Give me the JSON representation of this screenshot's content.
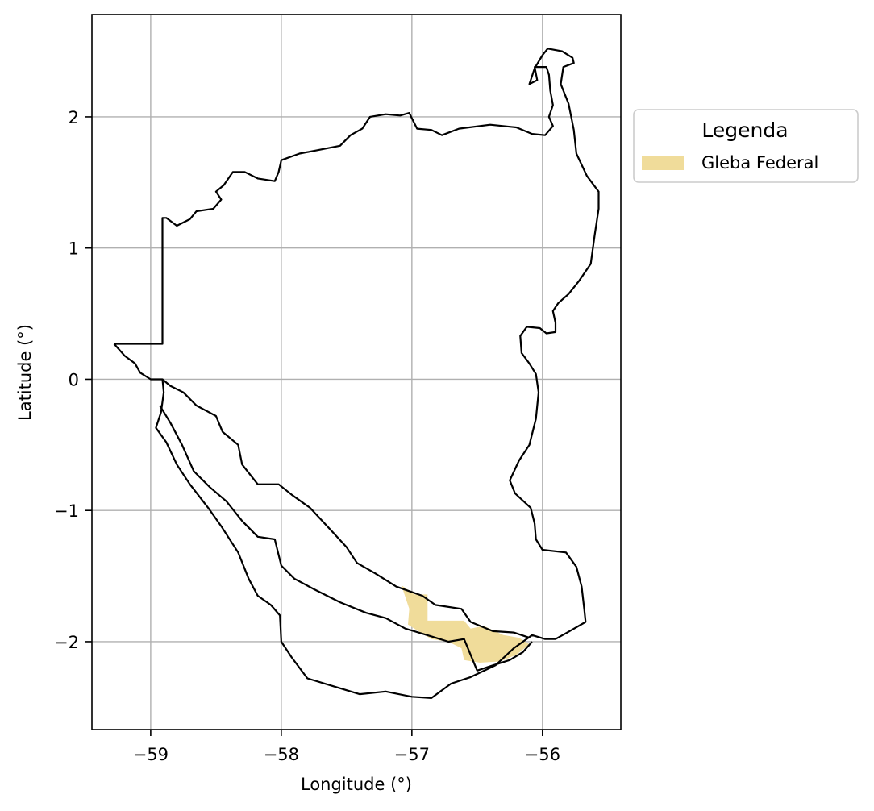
{
  "map": {
    "xlabel": "Longitude (°)",
    "ylabel": "Latitude (°)",
    "xlim": [
      -59.45,
      -55.4
    ],
    "ylim": [
      -2.67,
      2.78
    ],
    "x_ticks": [
      {
        "value": -59,
        "label": "−59"
      },
      {
        "value": -58,
        "label": "−58"
      },
      {
        "value": -57,
        "label": "−57"
      },
      {
        "value": -56,
        "label": "−56"
      }
    ],
    "y_ticks": [
      {
        "value": 2,
        "label": "2"
      },
      {
        "value": 1,
        "label": "1"
      },
      {
        "value": 0,
        "label": "0"
      },
      {
        "value": -1,
        "label": "−1"
      },
      {
        "value": -2,
        "label": "−2"
      }
    ],
    "grid": true,
    "legend": {
      "title": "Legenda",
      "placement": "outside-right",
      "entries": [
        {
          "label": "Gleba Federal",
          "color": "#f0dc9a"
        }
      ]
    },
    "colors": {
      "boundary": "#000000",
      "gleba": "#f0dc9a",
      "grid": "#b0b0b0"
    },
    "regions": {
      "outer_boundary": [
        [
          -59.28,
          0.27
        ],
        [
          -58.91,
          0.27
        ],
        [
          -58.91,
          1.23
        ],
        [
          -58.88,
          1.23
        ],
        [
          -58.8,
          1.17
        ],
        [
          -58.7,
          1.22
        ],
        [
          -58.65,
          1.28
        ],
        [
          -58.52,
          1.3
        ],
        [
          -58.46,
          1.37
        ],
        [
          -58.5,
          1.43
        ],
        [
          -58.44,
          1.48
        ],
        [
          -58.37,
          1.58
        ],
        [
          -58.28,
          1.58
        ],
        [
          -58.18,
          1.53
        ],
        [
          -58.05,
          1.51
        ],
        [
          -58.02,
          1.58
        ],
        [
          -58.0,
          1.67
        ],
        [
          -57.86,
          1.72
        ],
        [
          -57.7,
          1.75
        ],
        [
          -57.55,
          1.78
        ],
        [
          -57.47,
          1.86
        ],
        [
          -57.38,
          1.91
        ],
        [
          -57.32,
          2.0
        ],
        [
          -57.2,
          2.02
        ],
        [
          -57.09,
          2.01
        ],
        [
          -57.02,
          2.03
        ],
        [
          -56.96,
          1.91
        ],
        [
          -56.85,
          1.9
        ],
        [
          -56.77,
          1.86
        ],
        [
          -56.64,
          1.91
        ],
        [
          -56.4,
          1.94
        ],
        [
          -56.2,
          1.92
        ],
        [
          -56.08,
          1.87
        ],
        [
          -55.98,
          1.86
        ],
        [
          -55.92,
          1.93
        ],
        [
          -55.95,
          2.0
        ],
        [
          -55.92,
          2.09
        ],
        [
          -55.94,
          2.2
        ],
        [
          -55.95,
          2.32
        ],
        [
          -55.97,
          2.38
        ],
        [
          -56.06,
          2.38
        ],
        [
          -56.04,
          2.28
        ],
        [
          -56.1,
          2.25
        ],
        [
          -56.06,
          2.37
        ],
        [
          -56.0,
          2.47
        ],
        [
          -55.96,
          2.52
        ],
        [
          -55.85,
          2.5
        ],
        [
          -55.77,
          2.45
        ],
        [
          -55.76,
          2.41
        ],
        [
          -55.84,
          2.38
        ],
        [
          -55.86,
          2.25
        ],
        [
          -55.8,
          2.1
        ],
        [
          -55.76,
          1.9
        ],
        [
          -55.74,
          1.72
        ],
        [
          -55.66,
          1.55
        ],
        [
          -55.57,
          1.43
        ],
        [
          -55.57,
          1.3
        ],
        [
          -55.6,
          1.1
        ],
        [
          -55.63,
          0.88
        ],
        [
          -55.72,
          0.75
        ],
        [
          -55.8,
          0.65
        ],
        [
          -55.88,
          0.58
        ],
        [
          -55.92,
          0.52
        ],
        [
          -55.9,
          0.43
        ],
        [
          -55.9,
          0.36
        ],
        [
          -55.97,
          0.35
        ],
        [
          -56.02,
          0.39
        ],
        [
          -56.12,
          0.4
        ],
        [
          -56.17,
          0.33
        ],
        [
          -56.16,
          0.2
        ],
        [
          -56.1,
          0.12
        ],
        [
          -56.05,
          0.04
        ],
        [
          -56.03,
          -0.1
        ],
        [
          -56.05,
          -0.3
        ],
        [
          -56.1,
          -0.5
        ],
        [
          -56.18,
          -0.62
        ],
        [
          -56.25,
          -0.77
        ],
        [
          -56.21,
          -0.87
        ],
        [
          -56.09,
          -0.98
        ],
        [
          -56.06,
          -1.1
        ],
        [
          -56.05,
          -1.22
        ],
        [
          -56.0,
          -1.3
        ],
        [
          -55.82,
          -1.32
        ],
        [
          -55.74,
          -1.43
        ],
        [
          -55.7,
          -1.58
        ],
        [
          -55.68,
          -1.75
        ],
        [
          -55.67,
          -1.85
        ],
        [
          -55.81,
          -1.93
        ],
        [
          -55.9,
          -1.98
        ],
        [
          -55.98,
          -1.98
        ],
        [
          -56.08,
          -1.95
        ],
        [
          -56.22,
          -2.05
        ],
        [
          -56.36,
          -2.18
        ],
        [
          -56.55,
          -2.27
        ],
        [
          -56.7,
          -2.32
        ],
        [
          -56.85,
          -2.43
        ],
        [
          -57.0,
          -2.42
        ],
        [
          -57.2,
          -2.38
        ],
        [
          -57.4,
          -2.4
        ],
        [
          -57.6,
          -2.34
        ],
        [
          -57.8,
          -2.28
        ],
        [
          -57.92,
          -2.12
        ],
        [
          -58.0,
          -2.0
        ],
        [
          -58.01,
          -1.8
        ],
        [
          -58.08,
          -1.72
        ],
        [
          -58.18,
          -1.65
        ],
        [
          -58.25,
          -1.52
        ],
        [
          -58.33,
          -1.32
        ],
        [
          -58.46,
          -1.12
        ],
        [
          -58.56,
          -0.98
        ],
        [
          -58.7,
          -0.8
        ],
        [
          -58.8,
          -0.65
        ],
        [
          -58.88,
          -0.48
        ],
        [
          -58.96,
          -0.37
        ],
        [
          -58.92,
          -0.25
        ],
        [
          -58.9,
          -0.1
        ],
        [
          -58.91,
          0.0
        ],
        [
          -59.0,
          0.0
        ],
        [
          -59.08,
          0.05
        ],
        [
          -59.12,
          0.12
        ],
        [
          -59.2,
          0.18
        ],
        [
          -59.28,
          0.27
        ]
      ],
      "inner_boundary_north": [
        [
          -58.91,
          0.0
        ],
        [
          -58.85,
          -0.05
        ],
        [
          -58.75,
          -0.1
        ],
        [
          -58.65,
          -0.2
        ],
        [
          -58.5,
          -0.28
        ],
        [
          -58.45,
          -0.4
        ],
        [
          -58.33,
          -0.5
        ],
        [
          -58.3,
          -0.65
        ],
        [
          -58.18,
          -0.8
        ],
        [
          -58.02,
          -0.8
        ],
        [
          -57.92,
          -0.88
        ],
        [
          -57.78,
          -0.98
        ],
        [
          -57.62,
          -1.15
        ],
        [
          -57.5,
          -1.28
        ],
        [
          -57.42,
          -1.4
        ],
        [
          -57.28,
          -1.48
        ],
        [
          -57.12,
          -1.58
        ],
        [
          -56.92,
          -1.65
        ],
        [
          -56.82,
          -1.72
        ],
        [
          -56.62,
          -1.75
        ],
        [
          -56.55,
          -1.85
        ],
        [
          -56.38,
          -1.92
        ],
        [
          -56.22,
          -1.93
        ],
        [
          -56.1,
          -1.97
        ]
      ],
      "inner_boundary_south": [
        [
          -58.93,
          -0.2
        ],
        [
          -58.85,
          -0.33
        ],
        [
          -58.76,
          -0.5
        ],
        [
          -58.67,
          -0.7
        ],
        [
          -58.55,
          -0.82
        ],
        [
          -58.42,
          -0.93
        ],
        [
          -58.3,
          -1.08
        ],
        [
          -58.18,
          -1.2
        ],
        [
          -58.05,
          -1.22
        ],
        [
          -58.0,
          -1.42
        ],
        [
          -57.9,
          -1.52
        ],
        [
          -57.75,
          -1.6
        ],
        [
          -57.55,
          -1.7
        ],
        [
          -57.35,
          -1.78
        ],
        [
          -57.2,
          -1.82
        ],
        [
          -57.05,
          -1.9
        ],
        [
          -56.85,
          -1.96
        ],
        [
          -56.72,
          -2.0
        ],
        [
          -56.6,
          -1.98
        ],
        [
          -56.55,
          -2.1
        ],
        [
          -56.5,
          -2.22
        ]
      ],
      "inner_boundary_south_end": [
        [
          -56.5,
          -2.22
        ],
        [
          -56.38,
          -2.18
        ],
        [
          -56.25,
          -2.14
        ],
        [
          -56.15,
          -2.08
        ],
        [
          -56.08,
          -2.0
        ]
      ],
      "gleba_federal": [
        [
          -57.08,
          -1.57
        ],
        [
          -56.98,
          -1.64
        ],
        [
          -56.88,
          -1.64
        ],
        [
          -56.88,
          -1.84
        ],
        [
          -56.6,
          -1.84
        ],
        [
          -56.55,
          -1.9
        ],
        [
          -56.45,
          -1.88
        ],
        [
          -56.3,
          -1.95
        ],
        [
          -56.18,
          -1.97
        ],
        [
          -56.1,
          -2.02
        ],
        [
          -56.2,
          -2.1
        ],
        [
          -56.32,
          -2.15
        ],
        [
          -56.48,
          -2.16
        ],
        [
          -56.6,
          -2.14
        ],
        [
          -56.62,
          -2.05
        ],
        [
          -56.72,
          -2.0
        ],
        [
          -56.85,
          -1.98
        ],
        [
          -56.95,
          -1.92
        ],
        [
          -57.03,
          -1.87
        ],
        [
          -57.02,
          -1.75
        ],
        [
          -57.08,
          -1.57
        ]
      ]
    }
  }
}
